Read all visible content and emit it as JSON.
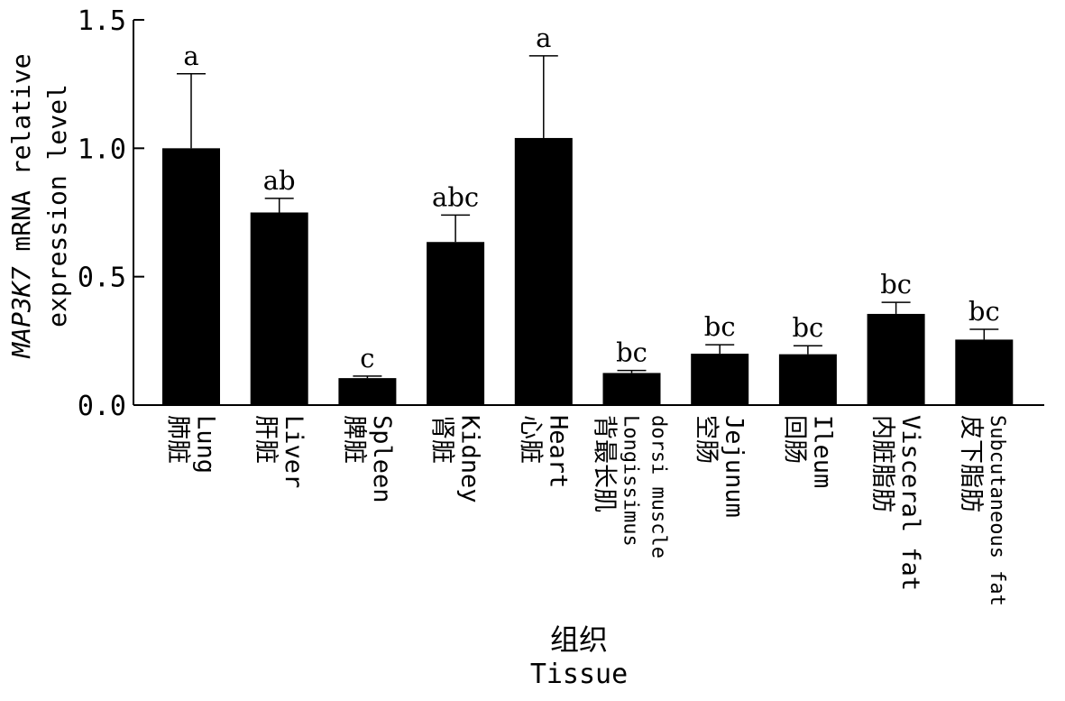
{
  "chart_data": {
    "type": "bar",
    "categories": [
      {
        "cn": "肺脏",
        "en": "Lung"
      },
      {
        "cn": "肝脏",
        "en": "Liver"
      },
      {
        "cn": "脾脏",
        "en": "Spleen"
      },
      {
        "cn": "肾脏",
        "en": "Kidney"
      },
      {
        "cn": "心脏",
        "en": "Heart"
      },
      {
        "cn": "背最长肌",
        "en": "Longissimus",
        "en2": "dorsi muscle"
      },
      {
        "cn": "空肠",
        "en": "Jejunum"
      },
      {
        "cn": "回肠",
        "en": "Ileum"
      },
      {
        "cn": "内脏脂肪",
        "en": "Visceral fat"
      },
      {
        "cn": "皮下脂肪",
        "en": "Subcutaneous fat"
      }
    ],
    "values": [
      1.0,
      0.75,
      0.105,
      0.635,
      1.04,
      0.125,
      0.2,
      0.198,
      0.355,
      0.255
    ],
    "errors": [
      0.29,
      0.055,
      0.008,
      0.105,
      0.32,
      0.01,
      0.035,
      0.033,
      0.045,
      0.04
    ],
    "significance": [
      "a",
      "ab",
      "c",
      "abc",
      "a",
      "bc",
      "bc",
      "bc",
      "bc",
      "bc"
    ],
    "ylabel_italic": "MAP3K7",
    "ylabel_rest": " mRNA relative",
    "ylabel_line2": "expression level",
    "xlabel_cn": "组织",
    "xlabel_en": "Tissue",
    "ylim": [
      0,
      1.5
    ],
    "yticks": [
      "0.0",
      "0.5",
      "1.0",
      "1.5"
    ],
    "bar_color": "#000000",
    "grid": false
  }
}
